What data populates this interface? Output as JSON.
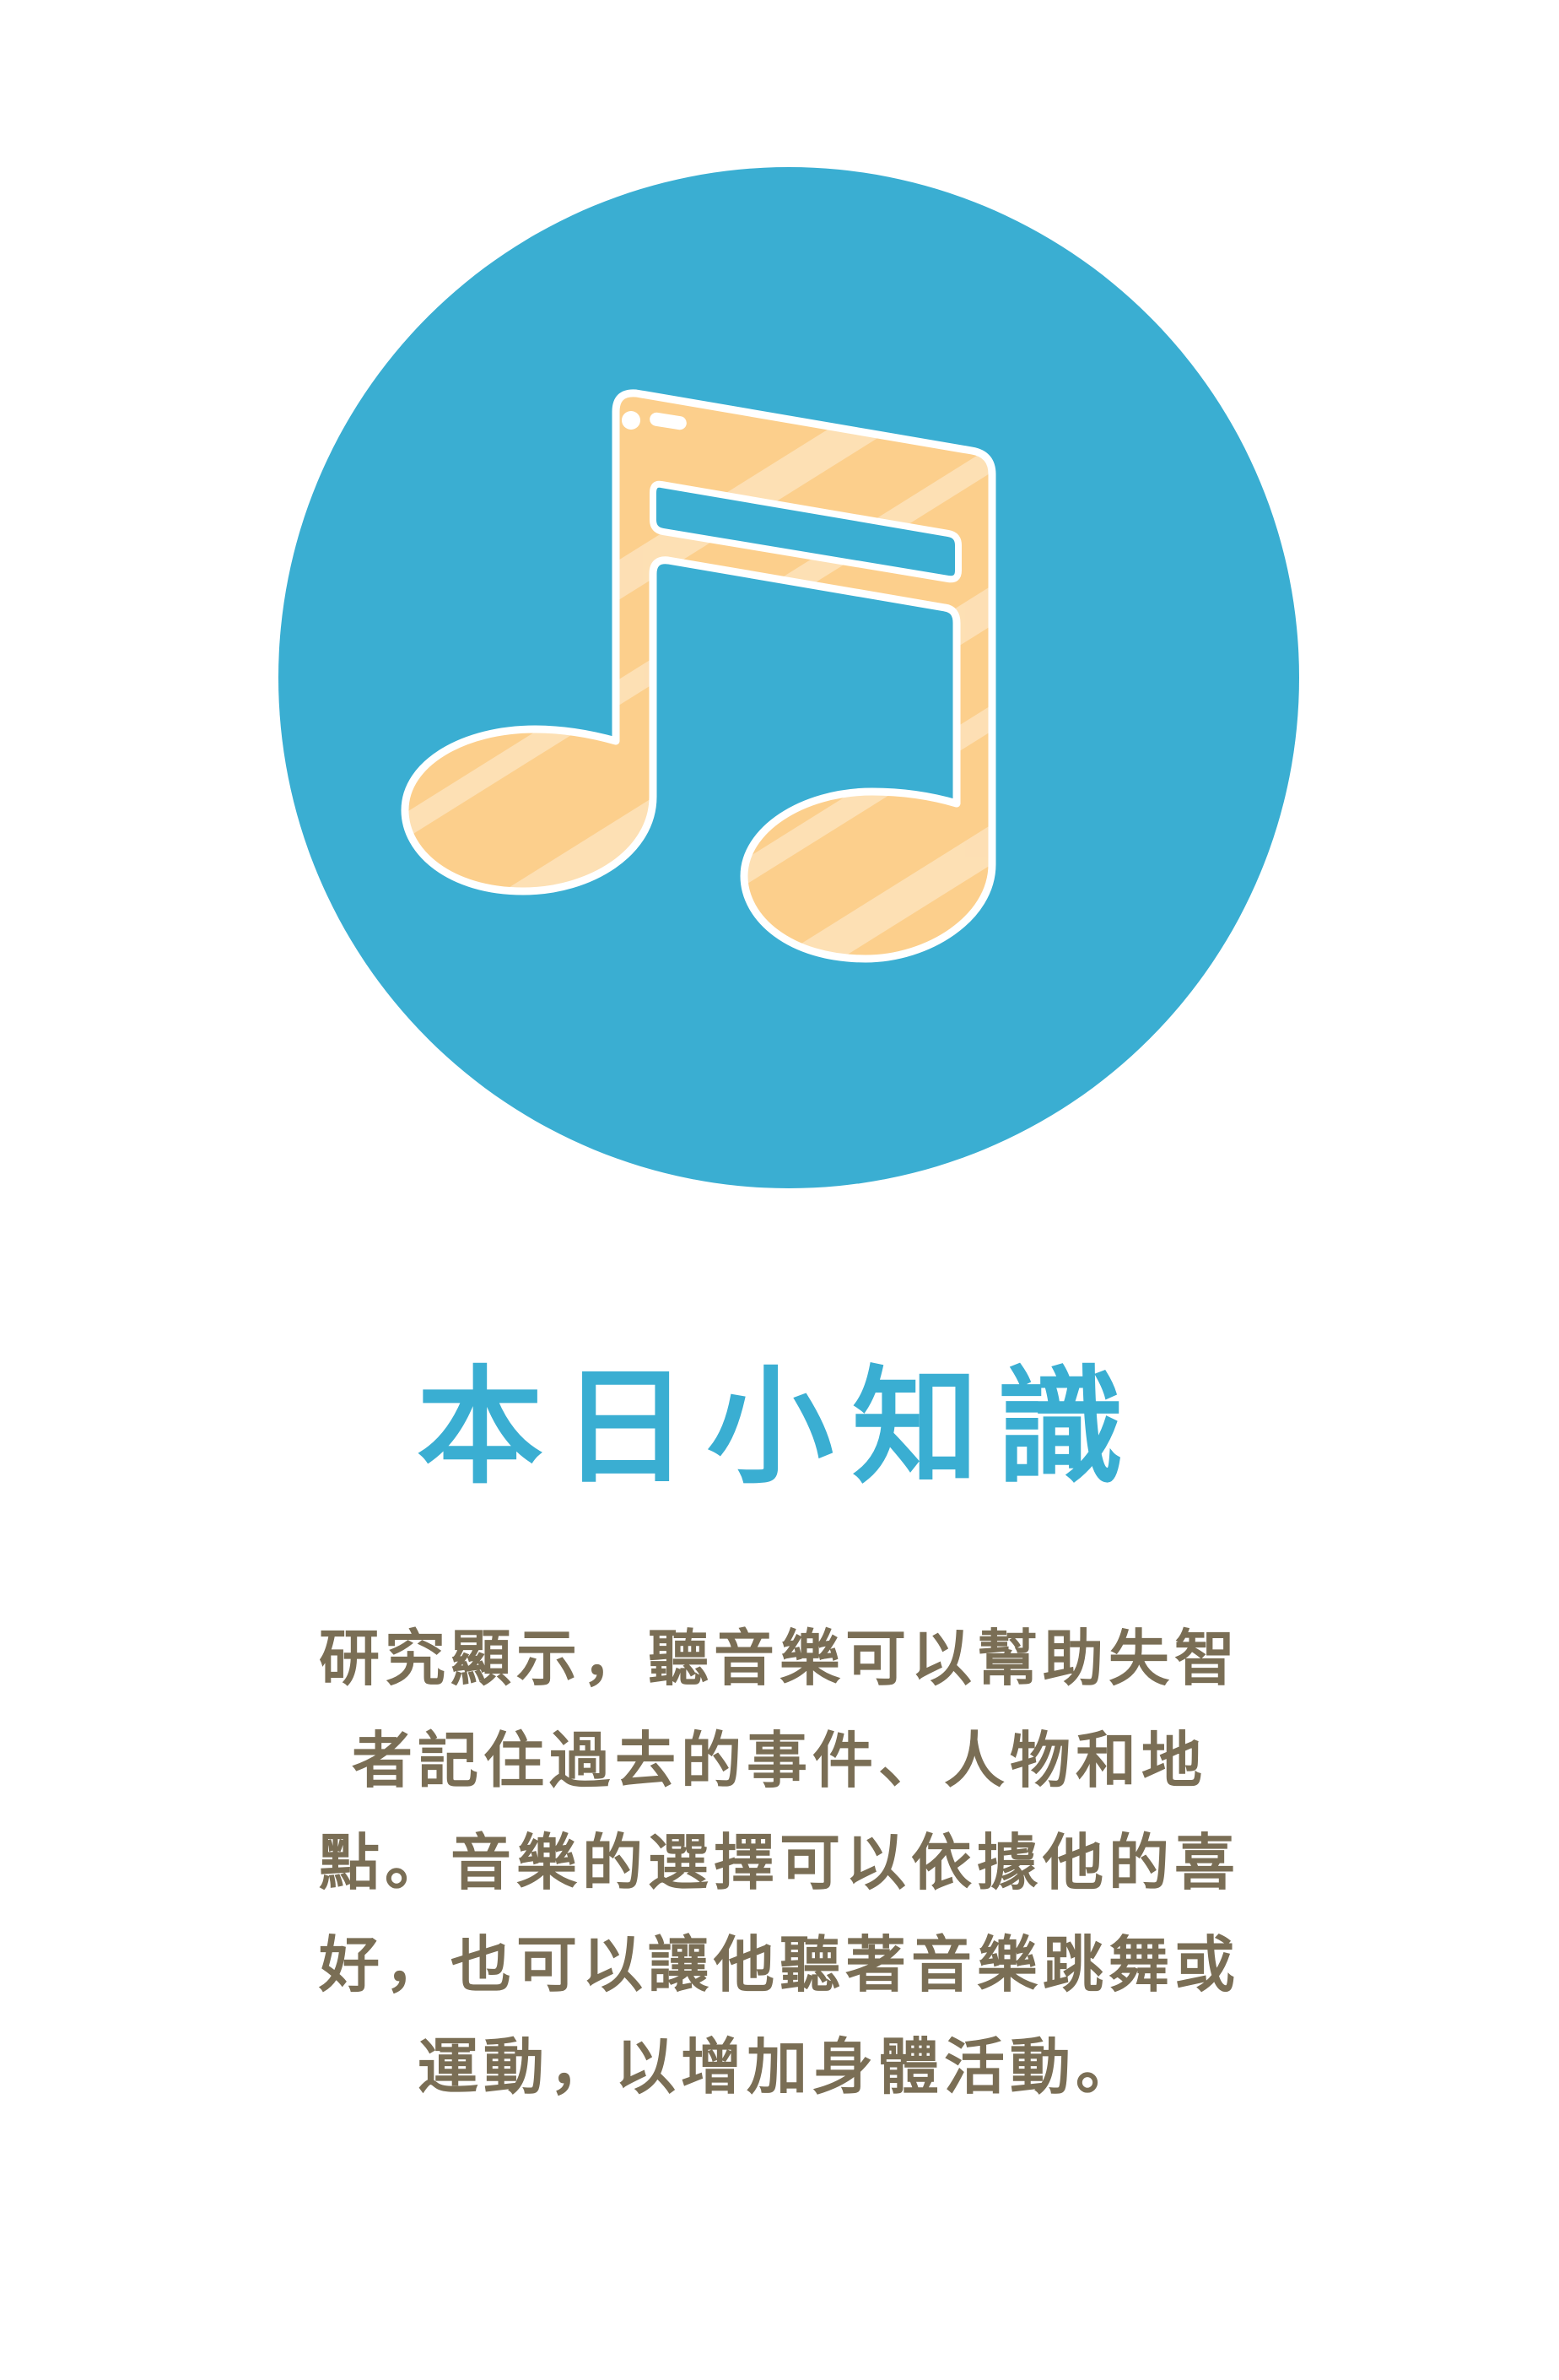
{
  "illustration": {
    "icon": "music-note-icon",
    "circle_color": "#3aaed2",
    "note_color": "#fccf8c"
  },
  "title": "本日小知識",
  "body": {
    "lines": [
      "研究顯示，聽音樂可以幫助失智",
      "者記住過去的事件、人物和地",
      "點。音樂的選擇可以依據他的喜",
      "好，也可以讓他聽著音樂跳舞或",
      "運動，以增加身體活動。"
    ]
  },
  "colors": {
    "title": "#3aaed2",
    "body_text": "#7a6e55",
    "background": "#ffffff"
  }
}
